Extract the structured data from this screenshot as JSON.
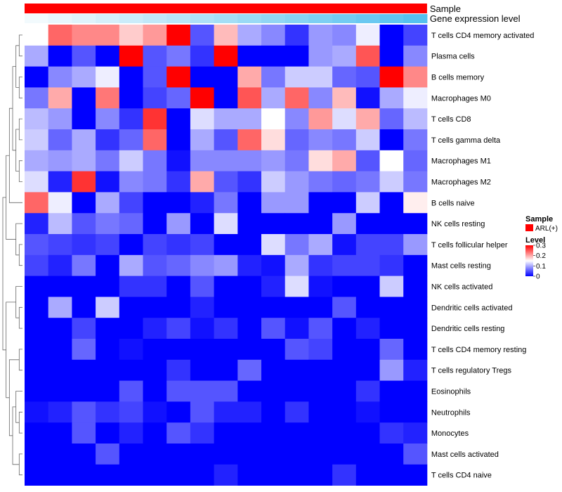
{
  "chart_data": {
    "type": "heatmap",
    "title": "",
    "annotations": [
      {
        "name": "Sample",
        "type": "constant",
        "color": "#ff0000"
      },
      {
        "name": "Gene expression level",
        "type": "gradient",
        "from": "#f2fafd",
        "to": "#56c1ef"
      }
    ],
    "rows": [
      "T cells CD4 memory activated",
      "Plasma cells",
      "B cells memory",
      "Macrophages M0",
      "T cells CD8",
      "T cells gamma delta",
      "Macrophages M1",
      "Macrophages M2",
      "B cells naive",
      "NK cells resting",
      "T cells follicular helper",
      "Mast cells resting",
      "NK cells activated",
      "Dendritic cells activated",
      "Dendritic cells resting",
      "T cells CD4 memory resting",
      "T cells regulatory  Tregs",
      "Eosinophils",
      "Neutrophils",
      "Monocytes",
      "Mast cells activated",
      "T cells CD4 naive"
    ],
    "n_columns": 17,
    "values": [
      [
        0.15,
        0.24,
        0.22,
        0.22,
        0.18,
        0.21,
        0.3,
        0.05,
        0.19,
        0.1,
        0.08,
        0.03,
        0.09,
        0.08,
        0.14,
        0.0,
        0.04
      ],
      [
        0.1,
        0.0,
        0.05,
        0.0,
        0.3,
        0.05,
        0.07,
        0.03,
        0.3,
        0.0,
        0.0,
        0.0,
        0.09,
        0.1,
        0.25,
        0.0,
        0.08
      ],
      [
        0.0,
        0.08,
        0.1,
        0.14,
        0.0,
        0.05,
        0.3,
        0.0,
        0.0,
        0.2,
        0.07,
        0.12,
        0.12,
        0.06,
        0.05,
        0.3,
        0.22
      ],
      [
        0.07,
        0.2,
        0.0,
        0.23,
        0.0,
        0.04,
        0.06,
        0.3,
        0.0,
        0.25,
        0.1,
        0.24,
        0.08,
        0.19,
        0.01,
        0.1,
        0.14
      ],
      [
        0.11,
        0.09,
        0.0,
        0.08,
        0.03,
        0.27,
        0.0,
        0.13,
        0.1,
        0.1,
        0.15,
        0.08,
        0.21,
        0.13,
        0.2,
        0.06,
        0.11
      ],
      [
        0.12,
        0.06,
        0.1,
        0.03,
        0.06,
        0.24,
        0.0,
        0.1,
        0.05,
        0.24,
        0.17,
        0.06,
        0.08,
        0.07,
        0.12,
        0.0,
        0.07
      ],
      [
        0.1,
        0.09,
        0.1,
        0.07,
        0.12,
        0.07,
        0.01,
        0.08,
        0.08,
        0.08,
        0.09,
        0.07,
        0.17,
        0.2,
        0.05,
        0.15,
        0.06
      ],
      [
        0.13,
        0.02,
        0.27,
        0.01,
        0.08,
        0.07,
        0.03,
        0.2,
        0.05,
        0.03,
        0.12,
        0.09,
        0.07,
        0.06,
        0.07,
        0.12,
        0.07
      ],
      [
        0.24,
        0.14,
        0.0,
        0.1,
        0.04,
        0.0,
        0.0,
        0.02,
        0.07,
        0.0,
        0.09,
        0.09,
        0.0,
        0.0,
        0.12,
        0.0,
        0.16
      ],
      [
        0.02,
        0.11,
        0.05,
        0.07,
        0.06,
        0.0,
        0.09,
        0.0,
        0.13,
        0.0,
        0.0,
        0.0,
        0.0,
        0.09,
        0.0,
        0.0,
        0.0
      ],
      [
        0.05,
        0.04,
        0.03,
        0.04,
        0.0,
        0.04,
        0.03,
        0.04,
        0.0,
        0.0,
        0.13,
        0.07,
        0.1,
        0.01,
        0.04,
        0.04,
        0.09
      ],
      [
        0.04,
        0.02,
        0.07,
        0.0,
        0.1,
        0.05,
        0.06,
        0.08,
        0.09,
        0.02,
        0.01,
        0.1,
        0.03,
        0.04,
        0.04,
        0.03,
        0.0
      ],
      [
        0.0,
        0.0,
        0.0,
        0.0,
        0.03,
        0.03,
        0.0,
        0.05,
        0.0,
        0.0,
        0.02,
        0.13,
        0.01,
        0.0,
        0.0,
        0.12,
        0.0
      ],
      [
        0.0,
        0.1,
        0.0,
        0.12,
        0.0,
        0.0,
        0.0,
        0.02,
        0.0,
        0.0,
        0.0,
        0.0,
        0.0,
        0.05,
        0.0,
        0.0,
        0.0
      ],
      [
        0.0,
        0.0,
        0.04,
        0.0,
        0.0,
        0.02,
        0.04,
        0.01,
        0.03,
        0.0,
        0.05,
        0.01,
        0.05,
        0.0,
        0.02,
        0.0,
        0.0
      ],
      [
        0.0,
        0.0,
        0.06,
        0.0,
        0.01,
        0.0,
        0.0,
        0.0,
        0.0,
        0.0,
        0.0,
        0.05,
        0.04,
        0.0,
        0.0,
        0.06,
        0.0
      ],
      [
        0.0,
        0.0,
        0.0,
        0.0,
        0.0,
        0.0,
        0.03,
        0.0,
        0.0,
        0.06,
        0.0,
        0.0,
        0.0,
        0.0,
        0.0,
        0.09,
        0.02
      ],
      [
        0.0,
        0.0,
        0.0,
        0.0,
        0.05,
        0.0,
        0.05,
        0.05,
        0.05,
        0.0,
        0.0,
        0.0,
        0.0,
        0.0,
        0.03,
        0.0,
        0.0
      ],
      [
        0.01,
        0.02,
        0.05,
        0.03,
        0.04,
        0.01,
        0.0,
        0.05,
        0.02,
        0.02,
        0.0,
        0.03,
        0.0,
        0.0,
        0.01,
        0.0,
        0.0
      ],
      [
        0.0,
        0.0,
        0.05,
        0.0,
        0.02,
        0.0,
        0.05,
        0.03,
        0.0,
        0.0,
        0.0,
        0.0,
        0.0,
        0.0,
        0.0,
        0.03,
        0.02
      ],
      [
        0.0,
        0.0,
        0.0,
        0.05,
        0.0,
        0.0,
        0.0,
        0.0,
        0.0,
        0.0,
        0.0,
        0.0,
        0.0,
        0.0,
        0.0,
        0.0,
        0.05
      ],
      [
        0.0,
        0.0,
        0.0,
        0.0,
        0.0,
        0.0,
        0.0,
        0.0,
        0.02,
        0.0,
        0.0,
        0.0,
        0.0,
        0.03,
        0.0,
        0.0,
        0.0
      ]
    ],
    "color_scale": {
      "min": 0,
      "mid": 0.15,
      "max": 0.3,
      "low": "#0000ff",
      "midc": "#ffffff",
      "high": "#ff0000"
    },
    "legend": {
      "sample": {
        "title": "Sample",
        "entry": "ARL(+)",
        "color": "#ff0000"
      },
      "level": {
        "title": "Level",
        "ticks": [
          "0.3",
          "0.2",
          "0.1",
          "0"
        ],
        "tick_values": [
          0.3,
          0.2,
          0.1,
          0
        ]
      }
    }
  }
}
